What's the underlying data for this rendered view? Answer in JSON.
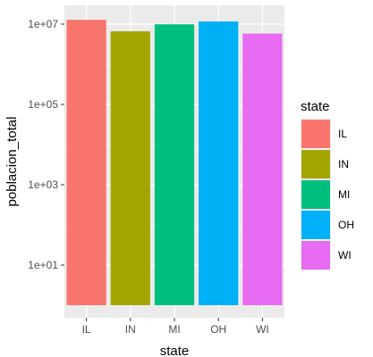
{
  "chart_data": {
    "type": "bar",
    "title": "",
    "xlabel": "state",
    "ylabel": "poblacion_total",
    "y_scale": "log10",
    "categories": [
      "IL",
      "IN",
      "MI",
      "OH",
      "WI"
    ],
    "values": [
      12800000,
      6600000,
      9900000,
      11600000,
      5800000
    ],
    "y_ticks": [
      10,
      1000,
      100000,
      10000000
    ],
    "y_tick_labels": [
      "1e+01",
      "1e+03",
      "1e+05",
      "1e+07"
    ],
    "grid": true,
    "legend": {
      "title": "state",
      "placement": "right",
      "entries": [
        "IL",
        "IN",
        "MI",
        "OH",
        "WI"
      ]
    },
    "colors": [
      "#F8766D",
      "#A3A500",
      "#00BF7D",
      "#00B0F6",
      "#E76BF3"
    ],
    "panel_background": "#EBEBEB",
    "grid_color": "#FFFFFF"
  }
}
